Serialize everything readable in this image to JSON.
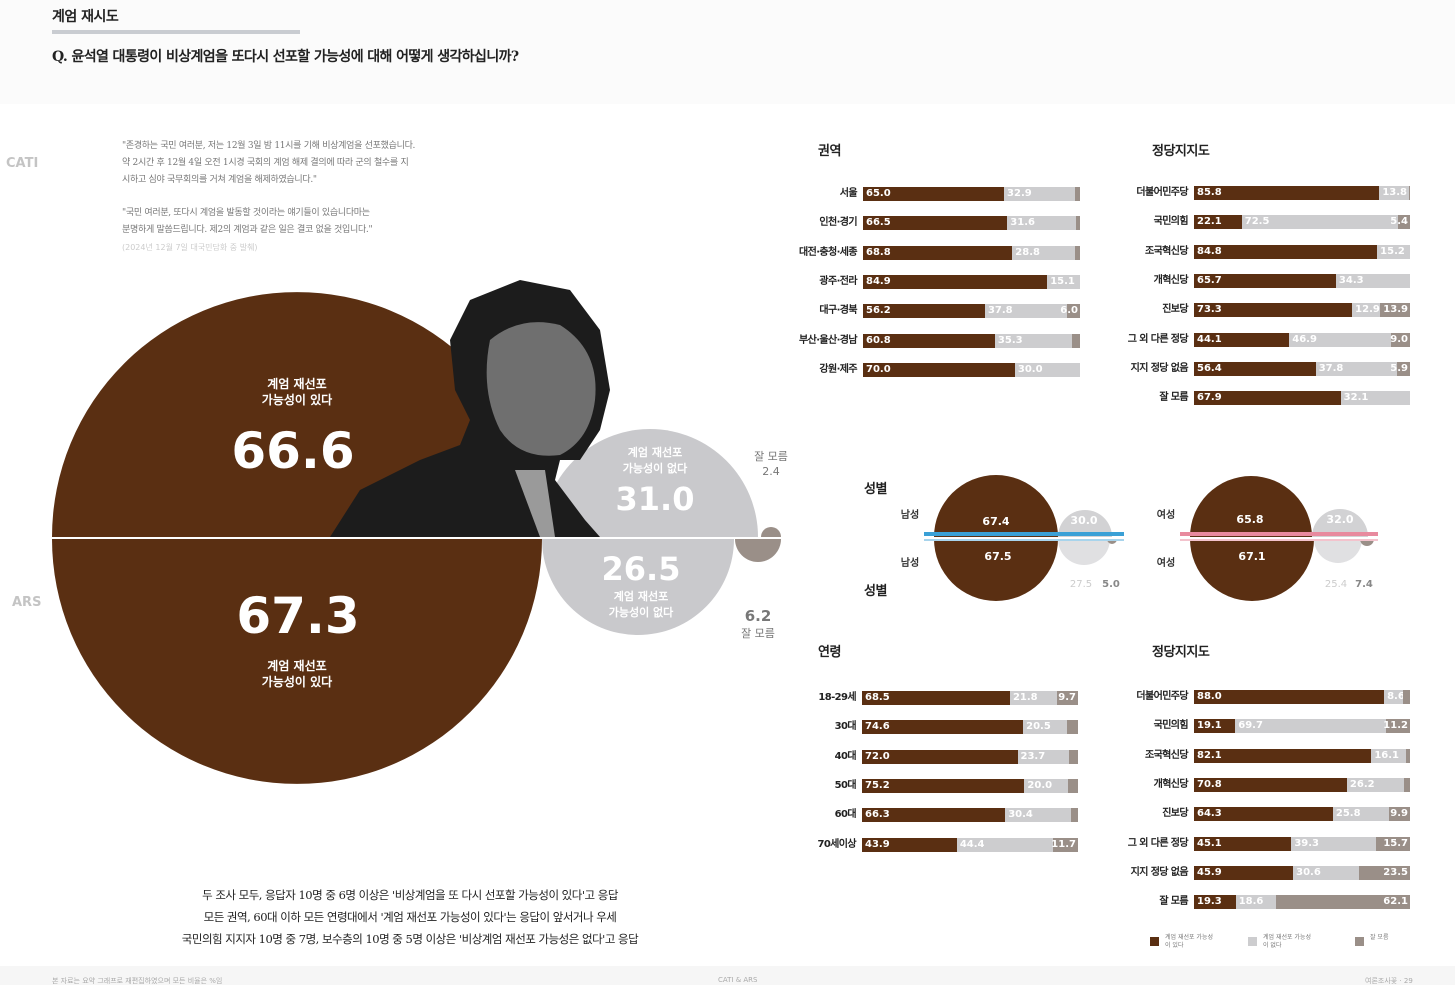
{
  "header": {
    "section_title": "계엄 재시도",
    "question": "Q. 윤석열 대통령이 비상계엄을 또다시 선포할 가능성에 대해 어떻게 생각하십니까?"
  },
  "methods": {
    "top": "CATI",
    "bottom": "ARS"
  },
  "quote": {
    "lines_1": [
      "\"존경하는 국민 여러분, 저는 12월 3일 밤 11시를 기해 비상계엄을 선포했습니다.",
      "약 2시간 후 12월 4일 오전 1시경 국회의 계엄 해제 결의에 따라 군의 철수를 지",
      "시하고 심야 국무회의를 거쳐 계엄을 해제하였습니다.\""
    ],
    "lines_2": [
      "\"국민 여러분, 또다시 계엄을 발동할 것이라는 얘기들이 있습니다마는",
      "분명하게 말씀드립니다. 제2의 계엄과 같은 일은 결코 없을 것입니다.\""
    ],
    "source": "(2024년 12월 7일 대국민담화 중 발췌)"
  },
  "big": {
    "cati_yes_label": [
      "계엄 재선포",
      "가능성이 있다"
    ],
    "cati_yes": "66.6",
    "cati_no_label": [
      "계엄 재선포",
      "가능성이 없다"
    ],
    "cati_no": "31.0",
    "cati_dk_label": "잘 모름",
    "cati_dk": "2.4",
    "ars_yes": "67.3",
    "ars_yes_label": [
      "계엄 재선포",
      "가능성이 있다"
    ],
    "ars_no": "26.5",
    "ars_no_label": [
      "계엄 재선포",
      "가능성이 없다"
    ],
    "ars_dk": "6.2",
    "ars_dk_label": "잘 모름"
  },
  "colors": {
    "yes": "#5a2f12",
    "no": "#cdcdcf",
    "dk": "#9a8f88",
    "male": "#3aa0d6",
    "female": "#e88a9e"
  },
  "summary": [
    "두 조사 모두, 응답자 10명 중 6명 이상은 '비상계엄을 또 다시 선포할 가능성이 있다'고 응답",
    "모든 권역, 60대 이하 모든 연령대에서 '계엄 재선포 가능성이 있다'는 응답이 앞서거나 우세",
    "국민의힘 지지자 10명 중 7명, 보수층의 10명 중 5명 이상은 '비상계엄 재선포 가능성은 없다'고 응답"
  ],
  "footer": {
    "left": "본 자료는 요약 그래프로 재편집하였으며 모든 비율은 %임",
    "center": "CATI & ARS",
    "right": "여론조사꽃 · 29"
  },
  "gender": {
    "title": "성별",
    "male_label": "남성",
    "female_label": "여성",
    "cati": {
      "male": [
        67.4,
        30.0,
        2.6
      ],
      "female": [
        65.8,
        32.0,
        2.2
      ]
    },
    "ars": {
      "male": [
        67.5,
        27.5,
        5.0
      ],
      "female": [
        67.1,
        25.4,
        7.4
      ]
    },
    "labels": {
      "cati_male_yes": "67.4",
      "cati_male_no": "30.0",
      "cati_female_yes": "65.8",
      "cati_female_no": "32.0",
      "ars_male_yes": "67.5",
      "ars_male_no": "27.5",
      "ars_male_dk": "5.0",
      "ars_female_yes": "67.1",
      "ars_female_no": "25.4",
      "ars_female_dk": "7.4"
    }
  },
  "legend": {
    "yes": "계엄 재선포 가능성이 있다",
    "no": "계엄 재선포 가능성이 없다",
    "dk": "잘 모름"
  },
  "chart_data": [
    {
      "type": "bar",
      "title": "권역",
      "stacked": true,
      "categories": [
        "서울",
        "인천·경기",
        "대전·충청·세종",
        "광주·전라",
        "대구·경북",
        "부산·울산·경남",
        "강원·제주"
      ],
      "series": [
        {
          "values": [
            65.0,
            66.5,
            68.8,
            84.9,
            56.2,
            60.8,
            70.0
          ]
        },
        {
          "values": [
            32.9,
            31.6,
            28.8,
            15.1,
            37.8,
            35.3,
            30.0
          ]
        },
        {
          "values": [
            2.1,
            1.9,
            2.4,
            0.0,
            6.0,
            3.9,
            0.0
          ]
        }
      ]
    },
    {
      "type": "bar",
      "title": "정당지지도",
      "stacked": true,
      "categories": [
        "더불어민주당",
        "국민의힘",
        "조국혁신당",
        "개혁신당",
        "진보당",
        "그 외 다른 정당",
        "지지 정당 없음",
        "잘 모름"
      ],
      "series": [
        {
          "values": [
            85.8,
            22.1,
            84.8,
            65.7,
            73.3,
            44.1,
            56.4,
            67.9
          ]
        },
        {
          "values": [
            13.8,
            72.5,
            15.2,
            34.3,
            12.9,
            46.9,
            37.8,
            32.1
          ]
        },
        {
          "values": [
            0.4,
            5.4,
            0.0,
            0.0,
            13.9,
            9.0,
            5.9,
            0.0
          ]
        }
      ]
    },
    {
      "type": "bar",
      "title": "연령",
      "stacked": true,
      "categories": [
        "18-29세",
        "30대",
        "40대",
        "50대",
        "60대",
        "70세이상"
      ],
      "series": [
        {
          "values": [
            68.5,
            74.6,
            72.0,
            75.2,
            66.3,
            43.9
          ]
        },
        {
          "values": [
            21.8,
            20.5,
            23.7,
            20.0,
            30.4,
            44.4
          ]
        },
        {
          "values": [
            9.7,
            4.9,
            4.3,
            4.8,
            3.3,
            11.7
          ]
        }
      ]
    },
    {
      "type": "bar",
      "title": "정당지지도",
      "stacked": true,
      "categories": [
        "더불어민주당",
        "국민의힘",
        "조국혁신당",
        "개혁신당",
        "진보당",
        "그 외 다른 정당",
        "지지 정당 없음",
        "잘 모름"
      ],
      "series": [
        {
          "values": [
            88.0,
            19.1,
            82.1,
            70.8,
            64.3,
            45.1,
            45.9,
            19.3
          ]
        },
        {
          "values": [
            8.6,
            69.7,
            16.1,
            26.2,
            25.8,
            39.3,
            30.6,
            18.6
          ]
        },
        {
          "values": [
            3.4,
            11.2,
            1.8,
            3.0,
            9.9,
            15.7,
            23.5,
            62.1
          ]
        }
      ]
    },
    {
      "type": "pie",
      "title": "CATI",
      "categories": [
        "계엄 재선포 가능성이 있다",
        "계엄 재선포 가능성이 없다",
        "잘 모름"
      ],
      "values": [
        66.6,
        31.0,
        2.4
      ]
    },
    {
      "type": "pie",
      "title": "ARS",
      "categories": [
        "계엄 재선포 가능성이 있다",
        "계엄 재선포 가능성이 없다",
        "잘 모름"
      ],
      "values": [
        67.3,
        26.5,
        6.2
      ]
    }
  ]
}
